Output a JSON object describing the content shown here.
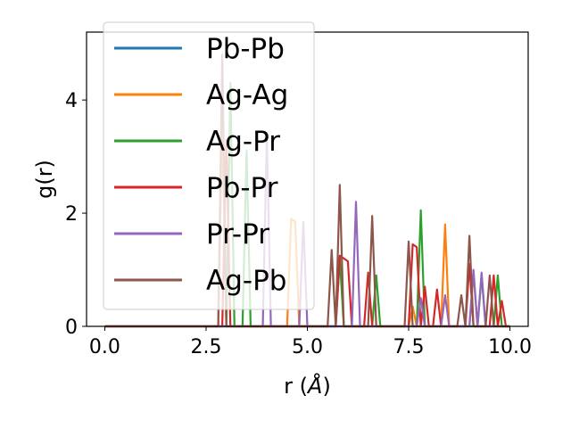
{
  "chart_data": {
    "type": "line",
    "xlabel_main": "r (",
    "xlabel_unit": "Å",
    "xlabel_close": ")",
    "ylabel": "g(r)",
    "xlim": [
      -0.45,
      10.45
    ],
    "ylim": [
      0,
      5.2
    ],
    "xticks": [
      0.0,
      2.5,
      5.0,
      7.5,
      10.0
    ],
    "xtick_labels": [
      "0.0",
      "2.5",
      "5.0",
      "7.5",
      "10.0"
    ],
    "yticks": [
      0,
      2,
      4
    ],
    "ytick_labels": [
      "0",
      "2",
      "4"
    ],
    "legend_position": "upper-left",
    "grid": false,
    "series": [
      {
        "name": "Pb-Pb",
        "color": "#1f77b4",
        "points": [
          [
            0,
            0
          ],
          [
            10,
            0
          ]
        ]
      },
      {
        "name": "Ag-Ag",
        "color": "#ff7f0e",
        "points": [
          [
            0,
            0
          ],
          [
            2.8,
            0
          ],
          [
            2.9,
            3.6
          ],
          [
            3.0,
            0
          ],
          [
            4.5,
            0
          ],
          [
            4.6,
            1.9
          ],
          [
            4.7,
            1.85
          ],
          [
            4.8,
            0
          ],
          [
            7.5,
            0
          ],
          [
            7.6,
            0.35
          ],
          [
            7.7,
            0
          ],
          [
            8.3,
            0
          ],
          [
            8.4,
            1.8
          ],
          [
            8.5,
            0
          ],
          [
            9.0,
            0
          ],
          [
            9.1,
            0.95
          ],
          [
            9.2,
            0
          ],
          [
            10,
            0
          ]
        ]
      },
      {
        "name": "Ag-Pr",
        "color": "#2ca02c",
        "points": [
          [
            0,
            0
          ],
          [
            3.0,
            0
          ],
          [
            3.1,
            4.3
          ],
          [
            3.2,
            0
          ],
          [
            3.4,
            0
          ],
          [
            3.5,
            3.1
          ],
          [
            3.6,
            0
          ],
          [
            5.7,
            0
          ],
          [
            5.8,
            1.2
          ],
          [
            5.9,
            0
          ],
          [
            6.6,
            0
          ],
          [
            6.7,
            0.9
          ],
          [
            6.8,
            0
          ],
          [
            7.7,
            0
          ],
          [
            7.8,
            2.05
          ],
          [
            7.9,
            0
          ],
          [
            9.2,
            0
          ],
          [
            9.3,
            0.9
          ],
          [
            9.4,
            0
          ],
          [
            9.6,
            0
          ],
          [
            9.7,
            0.9
          ],
          [
            9.8,
            0
          ],
          [
            10,
            0
          ]
        ]
      },
      {
        "name": "Pb-Pr",
        "color": "#d62728",
        "points": [
          [
            0,
            0
          ],
          [
            2.9,
            0
          ],
          [
            3.0,
            3.3
          ],
          [
            3.1,
            0
          ],
          [
            5.7,
            0
          ],
          [
            5.8,
            1.25
          ],
          [
            6.0,
            1.15
          ],
          [
            6.1,
            0
          ],
          [
            6.4,
            0
          ],
          [
            6.5,
            0.95
          ],
          [
            6.6,
            0
          ],
          [
            7.5,
            0
          ],
          [
            7.6,
            1.45
          ],
          [
            7.7,
            1.4
          ],
          [
            7.8,
            0
          ],
          [
            7.9,
            0.7
          ],
          [
            8.0,
            0
          ],
          [
            8.1,
            0
          ],
          [
            8.2,
            0.65
          ],
          [
            8.3,
            0
          ],
          [
            8.9,
            0
          ],
          [
            9.0,
            1.1
          ],
          [
            9.1,
            0
          ],
          [
            9.5,
            0
          ],
          [
            9.6,
            0.9
          ],
          [
            9.7,
            0
          ],
          [
            9.8,
            0.45
          ],
          [
            9.9,
            0
          ],
          [
            10,
            0
          ]
        ]
      },
      {
        "name": "Pr-Pr",
        "color": "#9467bd",
        "points": [
          [
            0,
            0
          ],
          [
            3.9,
            0
          ],
          [
            4.0,
            3.4
          ],
          [
            4.1,
            0
          ],
          [
            4.8,
            0
          ],
          [
            4.9,
            1.85
          ],
          [
            5.0,
            0
          ],
          [
            6.1,
            0
          ],
          [
            6.2,
            2.2
          ],
          [
            6.3,
            0
          ],
          [
            7.7,
            0
          ],
          [
            7.8,
            0.5
          ],
          [
            7.9,
            0
          ],
          [
            8.3,
            0
          ],
          [
            8.4,
            0.55
          ],
          [
            8.5,
            0
          ],
          [
            9.0,
            0
          ],
          [
            9.1,
            1.0
          ],
          [
            9.2,
            0
          ],
          [
            9.3,
            0.95
          ],
          [
            9.4,
            0
          ],
          [
            10,
            0
          ]
        ]
      },
      {
        "name": "Ag-Pb",
        "color": "#8c564b",
        "points": [
          [
            0,
            0
          ],
          [
            2.8,
            0
          ],
          [
            2.9,
            4.8
          ],
          [
            3.0,
            0
          ],
          [
            5.5,
            0
          ],
          [
            5.6,
            1.35
          ],
          [
            5.7,
            0
          ],
          [
            5.8,
            2.5
          ],
          [
            5.9,
            0
          ],
          [
            6.5,
            0
          ],
          [
            6.6,
            1.95
          ],
          [
            6.7,
            0
          ],
          [
            7.4,
            0
          ],
          [
            7.5,
            1.5
          ],
          [
            7.6,
            0
          ],
          [
            8.7,
            0
          ],
          [
            8.8,
            0.55
          ],
          [
            8.9,
            0
          ],
          [
            9.0,
            1.6
          ],
          [
            9.1,
            0
          ],
          [
            9.4,
            0
          ],
          [
            9.5,
            0.9
          ],
          [
            9.6,
            0
          ],
          [
            10,
            0
          ]
        ]
      }
    ]
  }
}
